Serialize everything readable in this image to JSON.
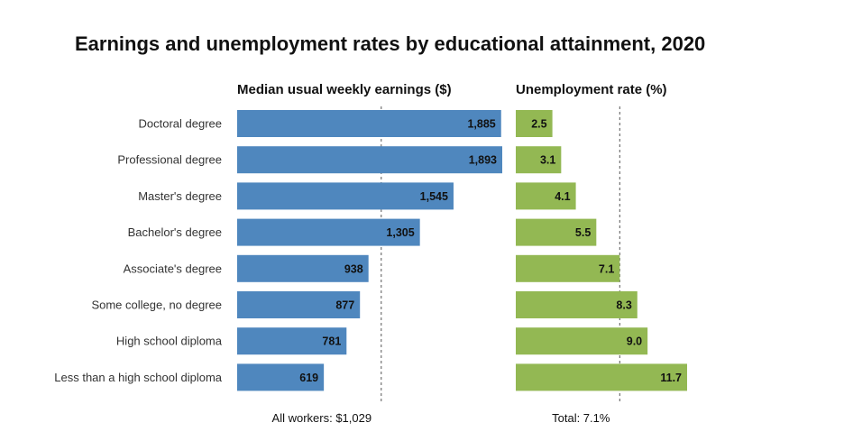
{
  "chart_data": {
    "title": "Earnings and unemployment rates by educational attainment, 2020",
    "type": "bar",
    "orientation": "horizontal",
    "categories": [
      "Doctoral degree",
      "Professional degree",
      "Master's degree",
      "Bachelor's degree",
      "Associate's degree",
      "Some college, no degree",
      "High school diploma",
      "Less than a high school diploma"
    ],
    "panels": [
      {
        "title": "Median usual weekly earnings ($)",
        "values": [
          1885,
          1893,
          1545,
          1305,
          938,
          877,
          781,
          619
        ],
        "labels": [
          "1,885",
          "1,893",
          "1,545",
          "1,305",
          "938",
          "877",
          "781",
          "619"
        ],
        "xlim": [
          0,
          1893
        ],
        "color": "#4f87be",
        "reference": {
          "value": 1029,
          "label": "All workers: $1,029"
        }
      },
      {
        "title": "Unemployment rate (%)",
        "values": [
          2.5,
          3.1,
          4.1,
          5.5,
          7.1,
          8.3,
          9.0,
          11.7
        ],
        "labels": [
          "2.5",
          "3.1",
          "4.1",
          "5.5",
          "7.1",
          "8.3",
          "9.0",
          "11.7"
        ],
        "xlim": [
          0,
          11.7
        ],
        "color": "#93b853",
        "reference": {
          "value": 7.1,
          "label": "Total: 7.1%"
        }
      }
    ],
    "grid": false,
    "legend": "none"
  }
}
